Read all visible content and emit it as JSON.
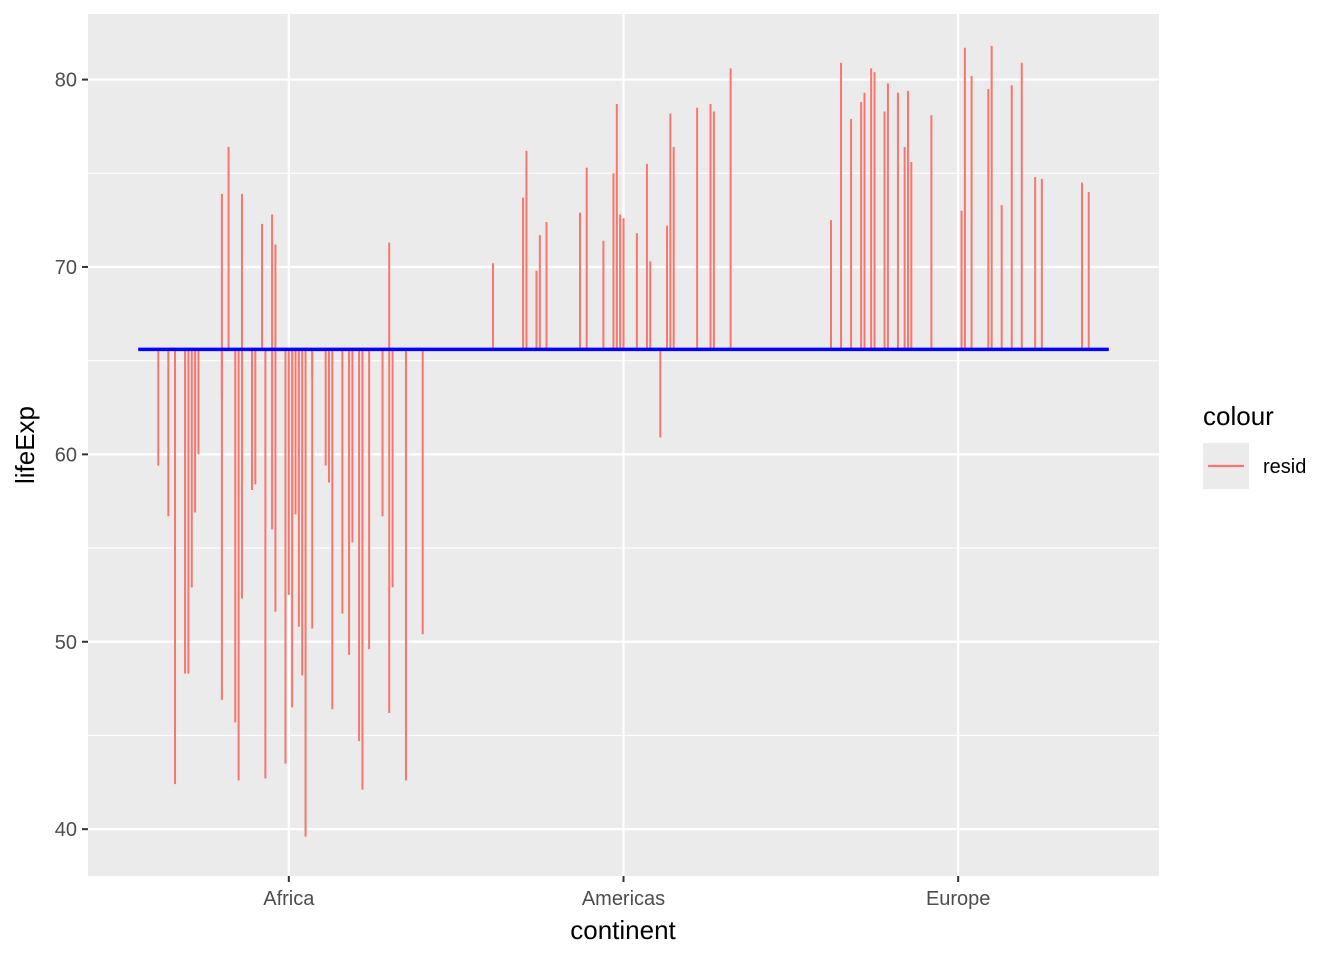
{
  "chart_data": {
    "type": "line",
    "mark": "vertical residual segments from mean line",
    "xlabel": "continent",
    "ylabel": "lifeExp",
    "categories": [
      "Africa",
      "Americas",
      "Europe"
    ],
    "x_range": [
      0.4,
      3.6
    ],
    "ylim": [
      37.5,
      83.5
    ],
    "y_ticks": [
      40,
      50,
      60,
      70,
      80
    ],
    "grid": true,
    "reference_line": {
      "y": 65.6,
      "x_from": 0.55,
      "x_to": 3.45,
      "color": "#0000ff"
    },
    "legend": {
      "title": "colour",
      "placement": "right",
      "entries": [
        {
          "label": "resid",
          "color": "#f8766d"
        }
      ]
    },
    "series": [
      {
        "name": "resid",
        "color": "#f8766d",
        "points": [
          {
            "x": 0.61,
            "y": 59.4
          },
          {
            "x": 0.64,
            "y": 56.7
          },
          {
            "x": 0.66,
            "y": 42.4
          },
          {
            "x": 0.69,
            "y": 48.3
          },
          {
            "x": 0.7,
            "y": 48.3
          },
          {
            "x": 0.71,
            "y": 52.9
          },
          {
            "x": 0.72,
            "y": 56.9
          },
          {
            "x": 0.73,
            "y": 60.0
          },
          {
            "x": 0.8,
            "y": 73.9
          },
          {
            "x": 0.8,
            "y": 63.0
          },
          {
            "x": 0.8,
            "y": 46.9
          },
          {
            "x": 0.82,
            "y": 76.4
          },
          {
            "x": 0.84,
            "y": 45.7
          },
          {
            "x": 0.85,
            "y": 42.6
          },
          {
            "x": 0.86,
            "y": 73.9
          },
          {
            "x": 0.86,
            "y": 52.3
          },
          {
            "x": 0.89,
            "y": 58.1
          },
          {
            "x": 0.9,
            "y": 58.4
          },
          {
            "x": 0.92,
            "y": 72.3
          },
          {
            "x": 0.93,
            "y": 42.7
          },
          {
            "x": 0.95,
            "y": 72.8
          },
          {
            "x": 0.95,
            "y": 56.0
          },
          {
            "x": 0.96,
            "y": 71.2
          },
          {
            "x": 0.96,
            "y": 51.6
          },
          {
            "x": 0.99,
            "y": 43.5
          },
          {
            "x": 1.0,
            "y": 52.5
          },
          {
            "x": 1.01,
            "y": 46.5
          },
          {
            "x": 1.02,
            "y": 56.8
          },
          {
            "x": 1.03,
            "y": 50.8
          },
          {
            "x": 1.04,
            "y": 48.2
          },
          {
            "x": 1.05,
            "y": 39.6
          },
          {
            "x": 1.07,
            "y": 64.1
          },
          {
            "x": 1.07,
            "y": 50.7
          },
          {
            "x": 1.11,
            "y": 59.4
          },
          {
            "x": 1.12,
            "y": 58.5
          },
          {
            "x": 1.13,
            "y": 46.4
          },
          {
            "x": 1.16,
            "y": 51.5
          },
          {
            "x": 1.18,
            "y": 49.3
          },
          {
            "x": 1.19,
            "y": 55.3
          },
          {
            "x": 1.21,
            "y": 44.7
          },
          {
            "x": 1.22,
            "y": 42.1
          },
          {
            "x": 1.24,
            "y": 49.6
          },
          {
            "x": 1.28,
            "y": 56.7
          },
          {
            "x": 1.3,
            "y": 71.3
          },
          {
            "x": 1.3,
            "y": 46.2
          },
          {
            "x": 1.31,
            "y": 52.9
          },
          {
            "x": 1.35,
            "y": 42.6
          },
          {
            "x": 1.4,
            "y": 50.4
          },
          {
            "x": 1.61,
            "y": 70.2
          },
          {
            "x": 1.7,
            "y": 73.7
          },
          {
            "x": 1.71,
            "y": 76.2
          },
          {
            "x": 1.74,
            "y": 69.8
          },
          {
            "x": 1.75,
            "y": 71.7
          },
          {
            "x": 1.77,
            "y": 72.4
          },
          {
            "x": 1.87,
            "y": 72.9
          },
          {
            "x": 1.89,
            "y": 75.3
          },
          {
            "x": 1.94,
            "y": 71.4
          },
          {
            "x": 1.97,
            "y": 75.0
          },
          {
            "x": 1.98,
            "y": 78.7
          },
          {
            "x": 1.99,
            "y": 72.8
          },
          {
            "x": 2.0,
            "y": 72.6
          },
          {
            "x": 2.04,
            "y": 71.8
          },
          {
            "x": 2.07,
            "y": 75.5
          },
          {
            "x": 2.08,
            "y": 70.3
          },
          {
            "x": 2.11,
            "y": 60.9
          },
          {
            "x": 2.13,
            "y": 72.2
          },
          {
            "x": 2.14,
            "y": 78.2
          },
          {
            "x": 2.15,
            "y": 76.4
          },
          {
            "x": 2.22,
            "y": 78.5
          },
          {
            "x": 2.26,
            "y": 78.7
          },
          {
            "x": 2.27,
            "y": 78.3
          },
          {
            "x": 2.32,
            "y": 80.6
          },
          {
            "x": 2.62,
            "y": 72.5
          },
          {
            "x": 2.65,
            "y": 80.9
          },
          {
            "x": 2.68,
            "y": 77.9
          },
          {
            "x": 2.71,
            "y": 78.8
          },
          {
            "x": 2.72,
            "y": 79.3
          },
          {
            "x": 2.74,
            "y": 80.6
          },
          {
            "x": 2.75,
            "y": 80.4
          },
          {
            "x": 2.78,
            "y": 78.3
          },
          {
            "x": 2.79,
            "y": 79.8
          },
          {
            "x": 2.82,
            "y": 79.3
          },
          {
            "x": 2.84,
            "y": 76.4
          },
          {
            "x": 2.85,
            "y": 79.4
          },
          {
            "x": 2.86,
            "y": 75.6
          },
          {
            "x": 2.92,
            "y": 78.1
          },
          {
            "x": 3.01,
            "y": 73.0
          },
          {
            "x": 3.02,
            "y": 81.7
          },
          {
            "x": 3.04,
            "y": 80.2
          },
          {
            "x": 3.09,
            "y": 79.5
          },
          {
            "x": 3.1,
            "y": 81.8
          },
          {
            "x": 3.13,
            "y": 73.3
          },
          {
            "x": 3.16,
            "y": 79.7
          },
          {
            "x": 3.19,
            "y": 80.9
          },
          {
            "x": 3.23,
            "y": 74.8
          },
          {
            "x": 3.25,
            "y": 74.7
          },
          {
            "x": 3.37,
            "y": 74.5
          },
          {
            "x": 3.39,
            "y": 74.0
          }
        ]
      }
    ]
  }
}
